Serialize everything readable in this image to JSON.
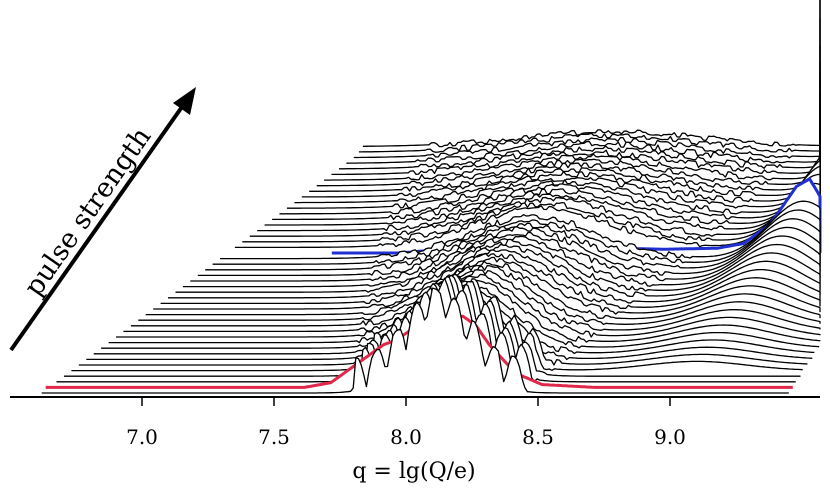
{
  "chart_data": {
    "type": "line",
    "subtype": "waterfall (stacked ridgeline) of spectra",
    "xlabel": "q = lg(Q/e)",
    "xlim": [
      6.62,
      9.45
    ],
    "xticks": [
      7.0,
      7.5,
      8.0,
      8.5,
      9.0
    ],
    "tick_labels": [
      "7.0",
      "7.5",
      "8.0",
      "8.5",
      "9.0"
    ],
    "annotation": "pulse strength",
    "grid": false,
    "legend": "none",
    "n_traces": 45,
    "highlighted_traces": [
      {
        "name": "",
        "color": "#e0284a",
        "trace_index": 1,
        "x": [
          7.6,
          7.7,
          7.8,
          7.85,
          7.9,
          7.95,
          8.0,
          8.05,
          8.1,
          8.15,
          8.2,
          8.25,
          8.3,
          8.4,
          8.5,
          8.7
        ],
        "y": [
          0.0,
          0.05,
          0.25,
          0.35,
          0.45,
          0.5,
          0.6,
          0.65,
          0.75,
          0.7,
          0.75,
          0.65,
          0.45,
          0.15,
          0.03,
          0.0
        ]
      },
      {
        "name": "",
        "color": "#1f2fd0",
        "trace_index": 25,
        "x": [
          7.6,
          7.8,
          8.0,
          8.2,
          8.4,
          8.6,
          8.8,
          8.9,
          9.0,
          9.05,
          9.1,
          9.15,
          9.2,
          9.25,
          9.3
        ],
        "y": [
          0.0,
          0.05,
          0.08,
          0.06,
          0.05,
          0.04,
          0.05,
          0.1,
          0.3,
          0.5,
          0.7,
          0.78,
          0.55,
          0.15,
          0.0
        ]
      }
    ],
    "colors": {
      "trace": "#000000",
      "low_highlight": "#e0284a",
      "high_highlight": "#1f2fd0"
    }
  }
}
